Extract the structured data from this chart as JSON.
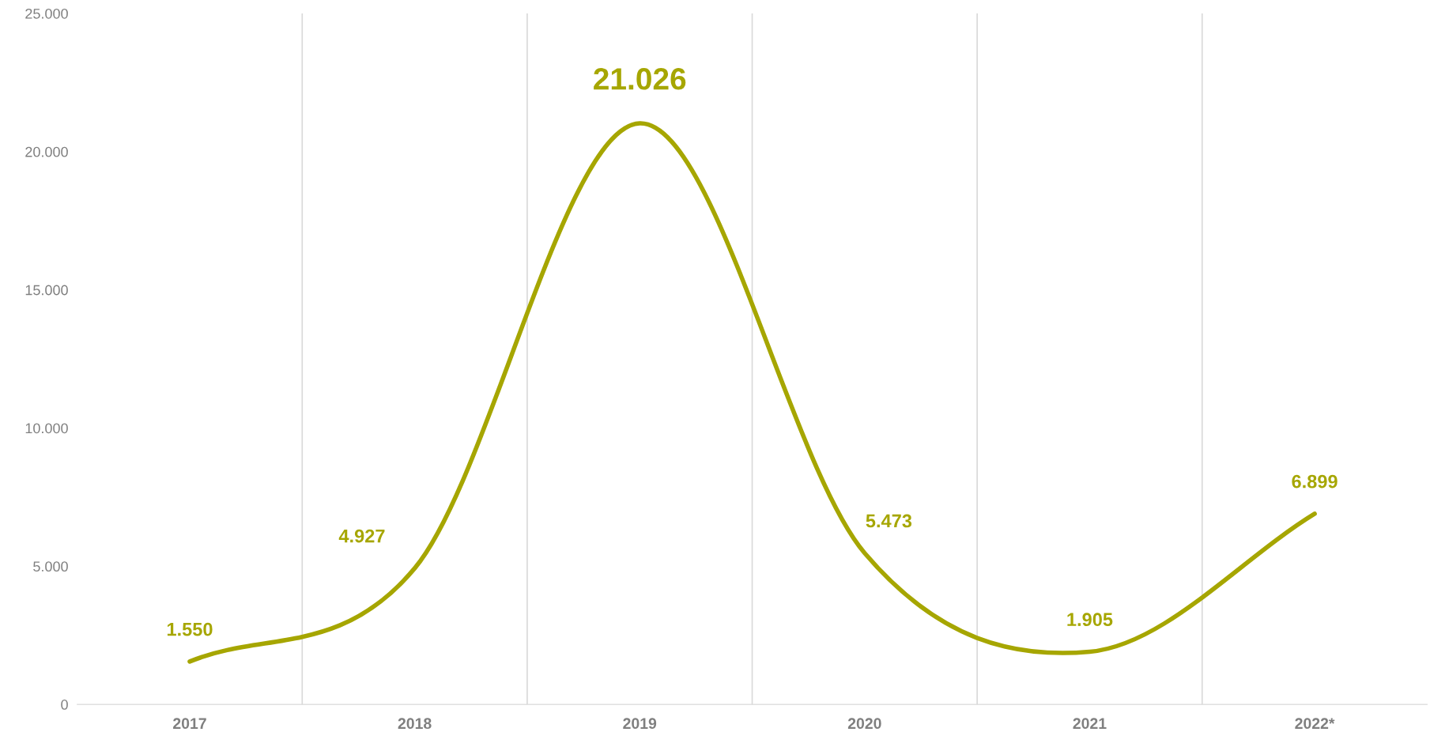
{
  "chart_data": {
    "type": "line",
    "categories": [
      "2017",
      "2018",
      "2019",
      "2020",
      "2021",
      "2022*"
    ],
    "series": [
      {
        "color": "#a6a600",
        "values": [
          1550,
          4927,
          21026,
          5473,
          1905,
          6899
        ],
        "value_labels": [
          "1.550",
          "4.927",
          "21.026",
          "5.473",
          "1.905",
          "6.899"
        ]
      }
    ],
    "ylim": [
      0,
      25000
    ],
    "yticks": [
      {
        "value": 0,
        "label": "0"
      },
      {
        "value": 5000,
        "label": "5.000"
      },
      {
        "value": 10000,
        "label": "10.000"
      },
      {
        "value": 15000,
        "label": "15.000"
      },
      {
        "value": 20000,
        "label": "20.000"
      },
      {
        "value": 25000,
        "label": "25.000"
      }
    ],
    "grid": "x",
    "legend": false,
    "marker": "none",
    "line_style": "solid"
  }
}
